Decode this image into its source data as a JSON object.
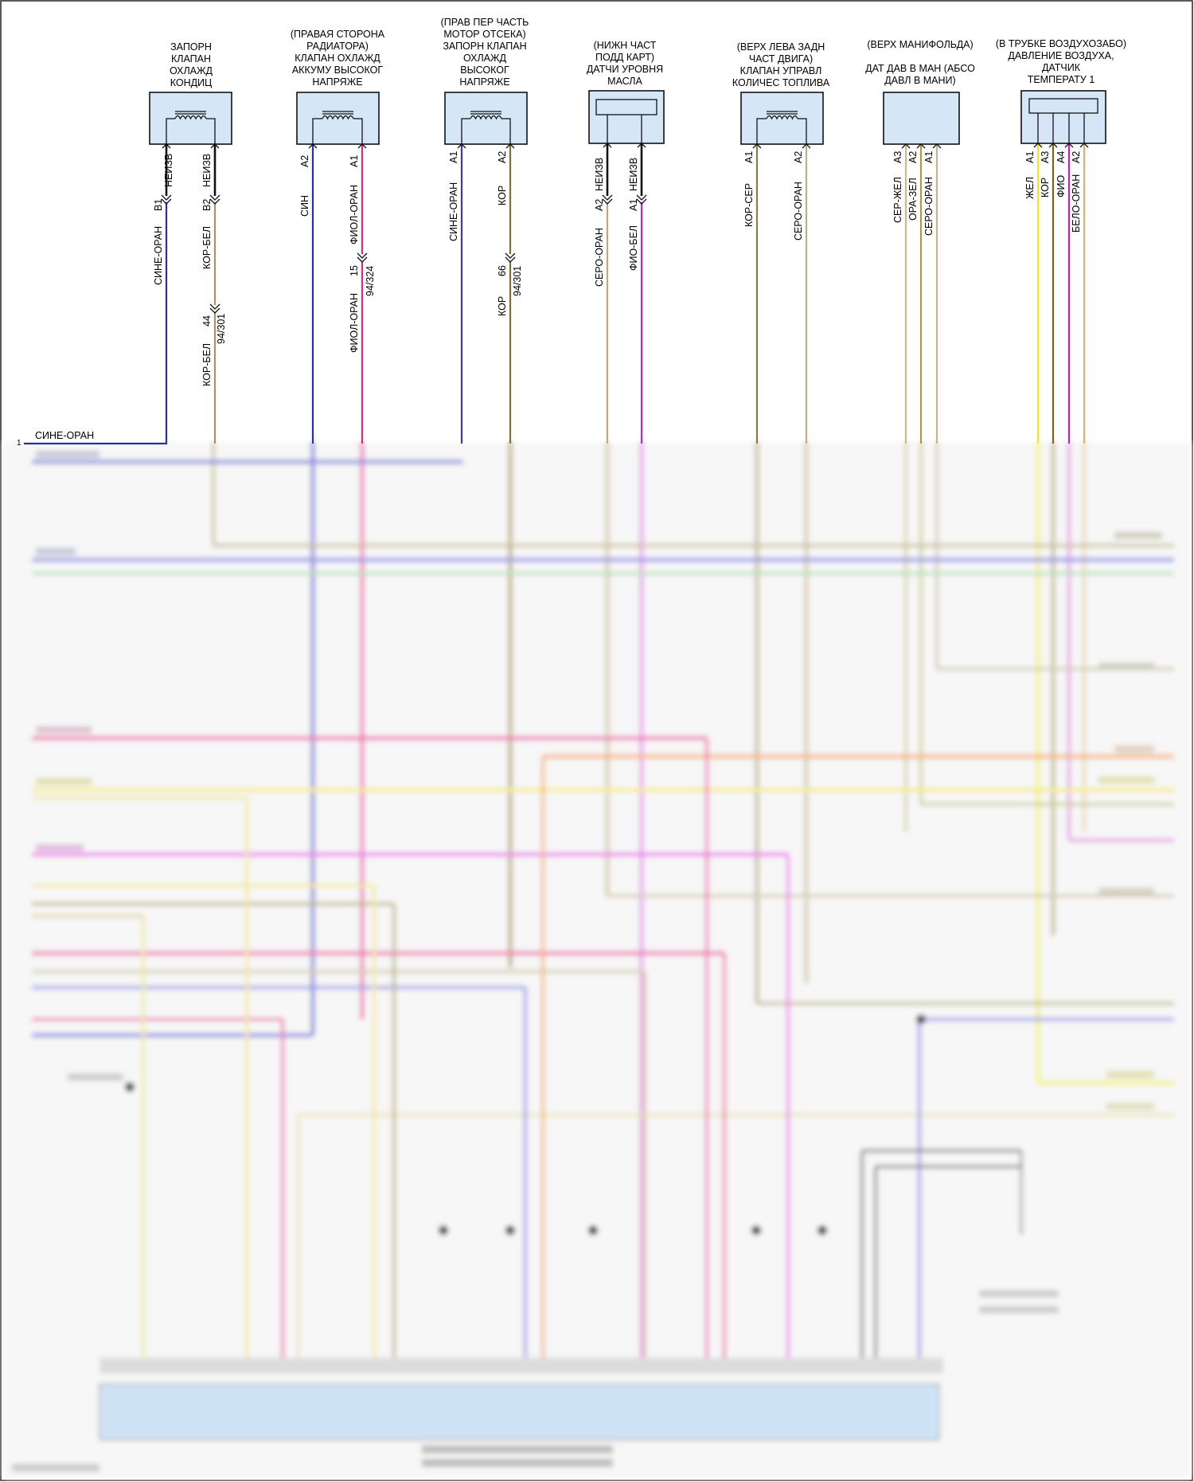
{
  "diagram": {
    "components": [
      {
        "id": "ac-shutoff-valve",
        "lines": [
          "ЗАПОРН",
          "КЛАПАН",
          "ОХЛАЖД",
          "КОНДИЦ"
        ]
      },
      {
        "id": "battery-coolant-valve",
        "lines": [
          "(ПРАВАЯ СТОРОНА",
          "РАДИАТОРА)",
          "КЛАПАН ОХЛАЖД",
          "АККУМУ ВЫСОКОГ",
          "НАПРЯЖЕ"
        ]
      },
      {
        "id": "hv-coolant-shutoff-valve",
        "lines": [
          "(ПРАВ ПЕР ЧАСТЬ",
          "МОТОР ОТСЕКА)",
          "ЗАПОРН КЛАПАН",
          "ОХЛАЖД",
          "ВЫСОКОГ",
          "НАПРЯЖЕ"
        ]
      },
      {
        "id": "oil-level-sensor",
        "lines": [
          "(НИЖН ЧАСТ",
          "ПОДД КАРТ)",
          "ДАТЧИ УРОВНЯ",
          "МАСЛА"
        ]
      },
      {
        "id": "fuel-quantity-valve",
        "lines": [
          "(ВЕРХ ЛЕВА ЗАДН",
          "ЧАСТ ДВИГА)",
          "КЛАПАН УПРАВЛ",
          "КОЛИЧЕС ТОПЛИВА"
        ]
      },
      {
        "id": "map-sensor",
        "lines": [
          "(ВЕРХ МАНИФОЛЬДА)",
          "",
          "ДАТ ДАВ В МАН (АБСО",
          "ДАВЛ В МАНИ)"
        ]
      },
      {
        "id": "intake-air-sensor",
        "lines": [
          "(В ТРУБКЕ ВОЗДУХОЗАБО)",
          "ДАВЛЕНИЕ ВОЗДУХА,",
          "ДАТЧИК",
          "ТЕМПЕРАТУ 1"
        ]
      }
    ],
    "pins": {
      "b1": "B1",
      "b2": "B2",
      "a2": "A2",
      "a1": "A1",
      "a3": "A3",
      "a4": "A4"
    },
    "wire_status": {
      "unknown": "НЕИЗВ"
    },
    "wires": {
      "sine_oran": "СИНЕ-ОРАН",
      "kor_bel": "КОР-БЕЛ",
      "sin": "СИН",
      "fiol_oran": "ФИОЛ-ОРАН",
      "kor": "КОР",
      "sero_oran": "СЕРО-ОРАН",
      "fio_bel": "ФИО-БЕЛ",
      "kor_ser": "КОР-СЕР",
      "ser_zhel": "СЕР-ЖЕЛ",
      "ora_zel": "ОРА-ЗЕЛ",
      "zhel": "ЖЕЛ",
      "fio": "ФИО",
      "belo_oran": "БЕЛО-ОРАН"
    },
    "splices": {
      "c44": "44",
      "c9431": "94/301",
      "c15": "15",
      "c94324": "94/324",
      "c66": "66"
    },
    "left_pin_1": "1"
  }
}
